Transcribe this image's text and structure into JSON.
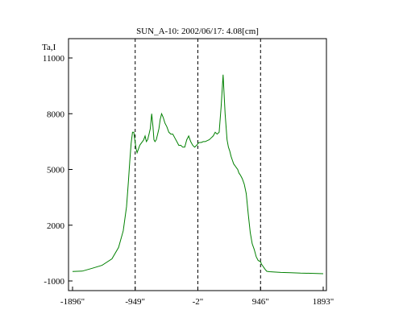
{
  "chart_data": {
    "type": "line",
    "title": "SUN_A-10: 2002/06/17: 4.08[cm]",
    "ylabel": "Ta,I",
    "xlabel": "",
    "xlim": [
      -1896,
      1893
    ],
    "ylim": [
      -1000,
      11000
    ],
    "grid": false,
    "legend": "none",
    "x_tick_labels": [
      "-1896\"",
      "-949\"",
      "-2\"",
      "946\"",
      "1893\""
    ],
    "x_ticks": [
      -1896,
      -949,
      -2,
      946,
      1893
    ],
    "y_tick_labels": [
      "11000",
      "8000",
      "5000",
      "2000",
      "-1000"
    ],
    "y_ticks": [
      11000,
      8000,
      5000,
      2000,
      -1000
    ],
    "vlines_dashed": [
      -949,
      -2,
      946
    ],
    "series_color": "#008000",
    "series": [
      {
        "x": [
          -1896,
          -1750,
          -1600,
          -1450,
          -1300,
          -1200,
          -1130,
          -1080,
          -1050,
          -1030,
          -1010,
          -990,
          -970,
          -955,
          -935,
          -920,
          -900,
          -880,
          -860,
          -840,
          -820,
          -800,
          -780,
          -760,
          -740,
          -720,
          -700,
          -680,
          -665,
          -650,
          -630,
          -610,
          -590,
          -570,
          -550,
          -525,
          -500,
          -470,
          -440,
          -410,
          -380,
          -350,
          -320,
          -290,
          -260,
          -230,
          -200,
          -170,
          -140,
          -110,
          -80,
          -50,
          -20,
          0,
          20,
          50,
          80,
          110,
          140,
          170,
          200,
          230,
          260,
          290,
          320,
          350,
          380,
          410,
          440,
          460,
          480,
          500,
          520,
          540,
          560,
          580,
          600,
          620,
          640,
          670,
          700,
          730,
          760,
          790,
          820,
          850,
          880,
          910,
          940,
          950,
          960,
          980,
          1000,
          1020,
          1040,
          1080,
          1150,
          1250,
          1400,
          1550,
          1700,
          1893
        ],
        "values": [
          -490,
          -470,
          -320,
          -160,
          190,
          800,
          1700,
          3000,
          4400,
          5500,
          6400,
          7000,
          7000,
          6600,
          6100,
          5900,
          6100,
          6300,
          6400,
          6500,
          6600,
          6800,
          6500,
          6600,
          6900,
          7200,
          8000,
          7300,
          6600,
          6500,
          6600,
          6900,
          7200,
          7700,
          8000,
          7800,
          7500,
          7300,
          7000,
          6900,
          6900,
          6700,
          6500,
          6300,
          6300,
          6200,
          6200,
          6600,
          6800,
          6500,
          6300,
          6200,
          6300,
          6400,
          6450,
          6450,
          6500,
          6500,
          6550,
          6600,
          6700,
          6800,
          7000,
          6900,
          7000,
          8400,
          10100,
          8000,
          6600,
          6200,
          6000,
          5700,
          5500,
          5300,
          5200,
          5100,
          5000,
          4800,
          4700,
          4500,
          4200,
          3700,
          2600,
          1600,
          1000,
          700,
          300,
          100,
          50,
          0,
          -100,
          -200,
          -300,
          -400,
          -480,
          -500,
          -520,
          -540,
          -560,
          -580,
          -590,
          -610
        ]
      }
    ]
  }
}
